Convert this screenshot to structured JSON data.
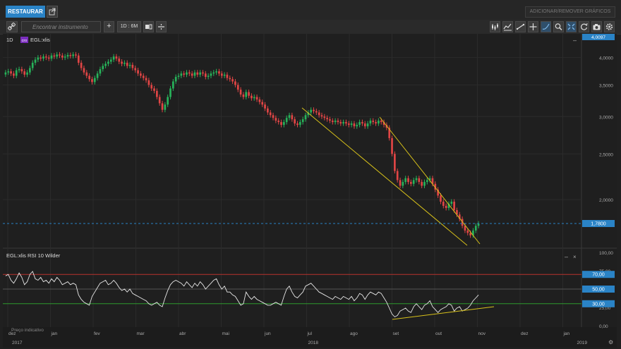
{
  "header": {
    "restore_label": "RESTAURAR",
    "add_remove_label": "ADICIONAR/REMOVER GRÁFICOS"
  },
  "toolbar": {
    "search_placeholder": "Encontrar instrumento",
    "timeframe_label": "1D : 6M"
  },
  "price_panel": {
    "period_label": "1D",
    "symbol_badge": "cro",
    "symbol_label": "EGL:xlis",
    "current_price_label": "1,7800",
    "top_price_label": "4,0097"
  },
  "rsi_panel": {
    "title": "EGL:xlis  RSI 10 Wilder",
    "level_high_label": "70,00",
    "level_mid_label": "50,00",
    "level_low_label": "30,00",
    "note": "Preço indicativo"
  },
  "colors": {
    "up": "#27b35a",
    "down": "#e04545",
    "trendline": "#d8c21a",
    "accent": "#2a83c6",
    "rsi_high": "#b8322f",
    "rsi_low": "#2f9a2f"
  },
  "chart_data": [
    {
      "type": "candlestick",
      "series": [
        {
          "name": "EGL:xlis"
        }
      ],
      "y_ticks": [
        "4,0000",
        "3,5000",
        "3,0000",
        "2,5000",
        "2,0000"
      ],
      "ylim": [
        1.6,
        4.25
      ],
      "x_ticks": [
        "dez",
        "jan",
        "fev",
        "mar",
        "abr",
        "mai",
        "jun",
        "jul",
        "ago",
        "set",
        "out",
        "nov",
        "dez",
        "jan"
      ],
      "year_labels": [
        "2017",
        "2018",
        "2019"
      ],
      "current_price": 1.78,
      "close": [
        3.72,
        3.74,
        3.7,
        3.66,
        3.76,
        3.78,
        3.74,
        3.68,
        3.72,
        3.8,
        3.9,
        3.96,
        4.0,
        3.98,
        4.02,
        4.0,
        3.98,
        4.04,
        4.02,
        4.06,
        4.04,
        4.0,
        4.02,
        4.05,
        4.03,
        4.06,
        4.04,
        3.9,
        3.8,
        3.72,
        3.66,
        3.6,
        3.55,
        3.62,
        3.7,
        3.78,
        3.84,
        3.88,
        3.92,
        3.96,
        4.02,
        3.98,
        3.92,
        3.88,
        3.9,
        3.84,
        3.86,
        3.8,
        3.76,
        3.7,
        3.66,
        3.62,
        3.58,
        3.5,
        3.44,
        3.4,
        3.3,
        3.2,
        3.1,
        3.18,
        3.3,
        3.44,
        3.56,
        3.64,
        3.66,
        3.7,
        3.68,
        3.72,
        3.7,
        3.66,
        3.72,
        3.68,
        3.72,
        3.7,
        3.64,
        3.66,
        3.7,
        3.72,
        3.74,
        3.7,
        3.66,
        3.68,
        3.62,
        3.6,
        3.56,
        3.5,
        3.42,
        3.34,
        3.3,
        3.38,
        3.32,
        3.28,
        3.3,
        3.26,
        3.22,
        3.18,
        3.12,
        3.06,
        3.02,
        2.98,
        2.94,
        2.92,
        2.88,
        2.92,
        2.98,
        3.02,
        2.96,
        2.9,
        2.88,
        2.92,
        2.96,
        3.02,
        3.06,
        3.1,
        3.08,
        3.06,
        3.02,
        3.0,
        2.98,
        2.96,
        2.94,
        2.92,
        2.94,
        2.92,
        2.9,
        2.92,
        2.9,
        2.88,
        2.9,
        2.86,
        2.88,
        2.92,
        2.9,
        2.86,
        2.9,
        2.94,
        2.92,
        2.9,
        2.94,
        2.92,
        2.88,
        2.84,
        2.7,
        2.5,
        2.3,
        2.2,
        2.14,
        2.18,
        2.22,
        2.18,
        2.16,
        2.2,
        2.22,
        2.18,
        2.14,
        2.18,
        2.2,
        2.22,
        2.16,
        2.1,
        2.04,
        1.98,
        1.94,
        1.92,
        1.96,
        1.98,
        1.9,
        1.86,
        1.82,
        1.76,
        1.72,
        1.7,
        1.68,
        1.72,
        1.76,
        1.78
      ]
    },
    {
      "type": "line",
      "series": [
        {
          "name": "RSI 10 Wilder"
        }
      ],
      "y_ticks": [
        "100,00",
        "75,00",
        "50,00",
        "25,00",
        "0,00"
      ],
      "ylim": [
        0,
        100
      ],
      "levels": [
        70,
        50,
        30
      ],
      "values": [
        68,
        70,
        62,
        58,
        64,
        72,
        66,
        56,
        60,
        70,
        74,
        64,
        62,
        66,
        60,
        62,
        58,
        64,
        60,
        66,
        62,
        56,
        58,
        60,
        56,
        58,
        56,
        42,
        36,
        32,
        30,
        28,
        40,
        46,
        52,
        58,
        60,
        62,
        56,
        58,
        62,
        58,
        52,
        48,
        50,
        46,
        50,
        44,
        42,
        40,
        38,
        36,
        34,
        30,
        28,
        30,
        32,
        28,
        26,
        38,
        48,
        56,
        60,
        62,
        60,
        58,
        54,
        60,
        56,
        52,
        58,
        54,
        60,
        56,
        50,
        54,
        58,
        62,
        64,
        56,
        50,
        54,
        46,
        46,
        42,
        40,
        34,
        28,
        30,
        46,
        40,
        36,
        40,
        36,
        34,
        32,
        30,
        28,
        28,
        30,
        32,
        30,
        28,
        40,
        50,
        54,
        46,
        40,
        38,
        42,
        46,
        54,
        56,
        58,
        54,
        50,
        46,
        44,
        42,
        40,
        38,
        36,
        40,
        38,
        36,
        40,
        38,
        36,
        40,
        34,
        38,
        44,
        42,
        36,
        42,
        46,
        44,
        42,
        46,
        44,
        38,
        32,
        24,
        16,
        12,
        14,
        20,
        22,
        24,
        20,
        18,
        26,
        30,
        26,
        22,
        28,
        30,
        34,
        26,
        22,
        18,
        22,
        24,
        26,
        30,
        28,
        20,
        24,
        26,
        20,
        22,
        24,
        28,
        34,
        38,
        42
      ]
    }
  ]
}
